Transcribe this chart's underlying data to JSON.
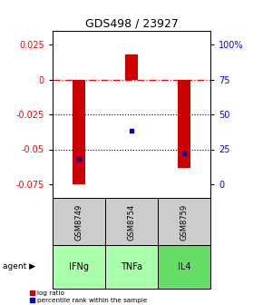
{
  "title": "GDS498 / 23927",
  "samples": [
    "GSM8749",
    "GSM8754",
    "GSM8759"
  ],
  "agents": [
    "IFNg",
    "TNFa",
    "IL4"
  ],
  "log_ratios": [
    -0.075,
    0.018,
    -0.063
  ],
  "percentile_ranks": [
    18,
    38,
    22
  ],
  "ylim": [
    -0.085,
    0.035
  ],
  "y_left_ticks": [
    0.025,
    0.0,
    -0.025,
    -0.05,
    -0.075
  ],
  "y_right_ticks": [
    100,
    75,
    50,
    25,
    0
  ],
  "zero_line": 0.0,
  "dotted_lines": [
    -0.025,
    -0.05
  ],
  "bar_color": "#cc0000",
  "dot_color": "#0000cc",
  "sample_bg": "#cccccc",
  "agent_colors": [
    "#aaffaa",
    "#aaffaa",
    "#66dd66"
  ],
  "agent_label": "agent",
  "legend_log": "log ratio",
  "legend_pct": "percentile rank within the sample",
  "title_fontsize": 9,
  "tick_fontsize": 7,
  "bar_width": 0.25
}
